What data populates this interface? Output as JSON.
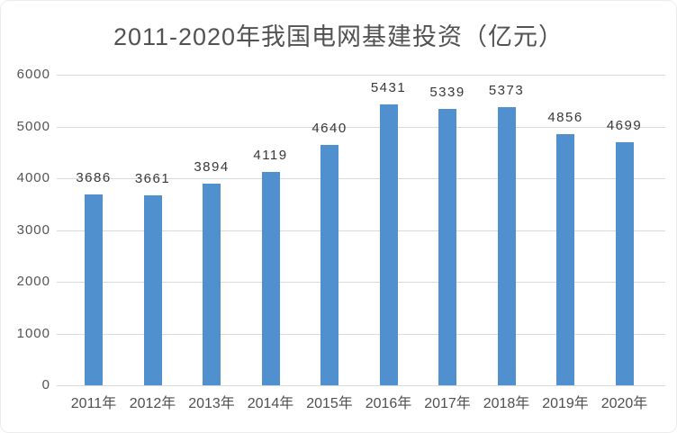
{
  "chart_data": {
    "type": "bar",
    "title": "2011-2020年我国电网基建投资（亿元）",
    "categories": [
      "2011年",
      "2012年",
      "2013年",
      "2014年",
      "2015年",
      "2016年",
      "2017年",
      "2018年",
      "2019年",
      "2020年"
    ],
    "values": [
      3686,
      3661,
      3894,
      4119,
      4640,
      5431,
      5339,
      5373,
      4856,
      4699
    ],
    "xlabel": "",
    "ylabel": "",
    "ylim": [
      0,
      6000
    ],
    "yticks": [
      0,
      1000,
      2000,
      3000,
      4000,
      5000,
      6000
    ],
    "grid": "horizontal",
    "legend_position": "none",
    "value_labels_shown": true,
    "bar_color": "#5190CE"
  },
  "colors": {
    "background": "#ffffff",
    "card_border": "#ececec",
    "title_text": "#525252",
    "axis_tick_text": "#545454",
    "x_axis_text": "#4f4f4f",
    "value_label_text": "#383838",
    "gridline": "#d9d9d9"
  }
}
